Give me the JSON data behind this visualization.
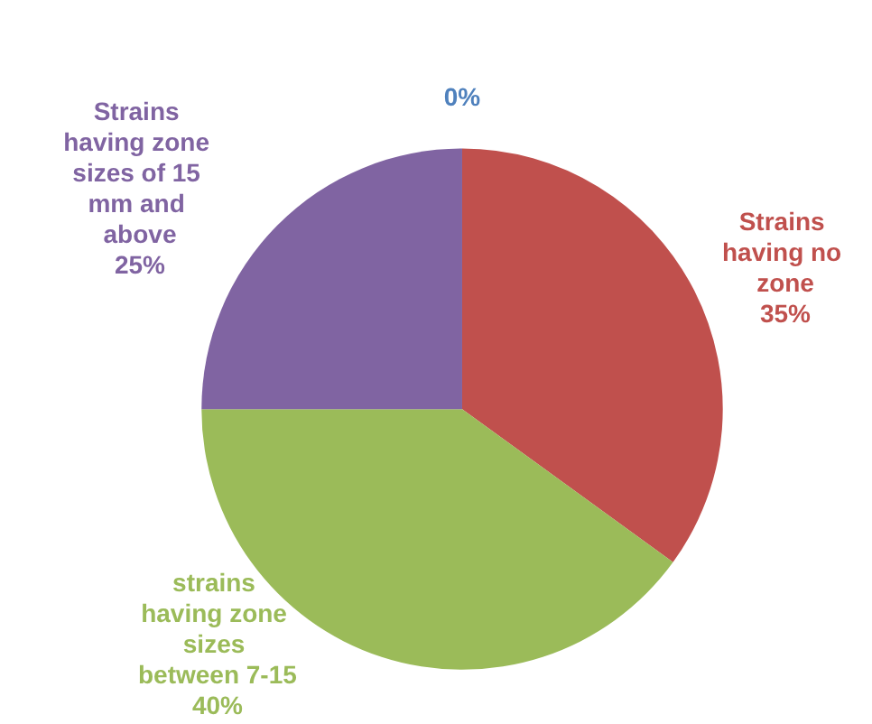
{
  "chart_data": {
    "type": "pie",
    "categories": [
      null,
      "Strains having no zone",
      "strains having zone sizes between 7-15",
      "Strains having zone sizes of 15 mm and above"
    ],
    "values": [
      0,
      35,
      40,
      25
    ],
    "colors": [
      "#4f81bd",
      "#c0504d",
      "#9bbb59",
      "#8064a2"
    ],
    "value_labels": [
      "0%",
      "35%",
      "40%",
      "25%"
    ],
    "legend": false
  }
}
